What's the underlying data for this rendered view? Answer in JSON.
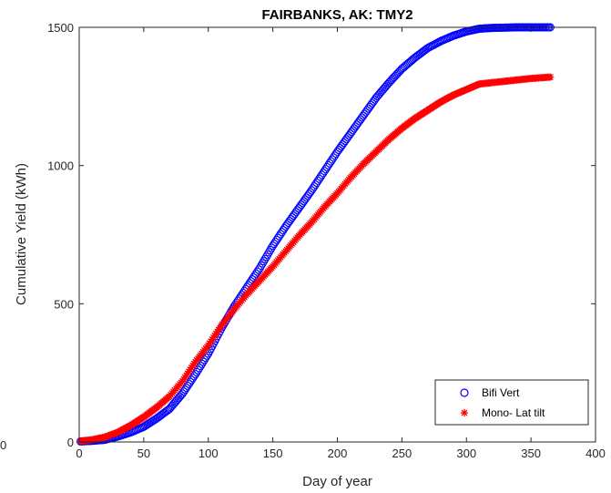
{
  "chart_data": {
    "type": "scatter",
    "title": "FAIRBANKS, AK: TMY2",
    "xlabel": "Day of year",
    "ylabel": "Cumulative Yield (kWh)",
    "xlim": [
      0,
      400
    ],
    "ylim": [
      0,
      1500
    ],
    "xticks": [
      0,
      50,
      100,
      150,
      200,
      250,
      300,
      350,
      400
    ],
    "yticks": [
      0,
      500,
      1000,
      1500
    ],
    "stray_label": "0",
    "grid": false,
    "legend_position": "bottom-right",
    "x": [
      1,
      10,
      20,
      30,
      40,
      50,
      60,
      70,
      80,
      90,
      100,
      110,
      120,
      130,
      140,
      150,
      160,
      170,
      180,
      190,
      200,
      210,
      220,
      230,
      240,
      250,
      260,
      270,
      280,
      290,
      300,
      310,
      320,
      330,
      340,
      350,
      365
    ],
    "series": [
      {
        "name": "Bifi Vert",
        "marker": "circle",
        "color": "#0000ff",
        "values": [
          2,
          4,
          8,
          20,
          35,
          55,
          85,
          120,
          175,
          245,
          320,
          410,
          490,
          560,
          630,
          710,
          780,
          845,
          910,
          980,
          1050,
          1115,
          1180,
          1245,
          1300,
          1350,
          1390,
          1425,
          1450,
          1470,
          1485,
          1495,
          1498,
          1499,
          1500,
          1500,
          1500
        ]
      },
      {
        "name": "Mono- Lat tilt",
        "marker": "asterisk",
        "color": "#ff0000",
        "values": [
          3,
          8,
          18,
          35,
          60,
          90,
          125,
          165,
          220,
          290,
          350,
          420,
          480,
          535,
          585,
          635,
          690,
          745,
          795,
          850,
          900,
          955,
          1005,
          1050,
          1095,
          1135,
          1170,
          1200,
          1230,
          1255,
          1275,
          1295,
          1300,
          1305,
          1310,
          1315,
          1320
        ]
      }
    ]
  }
}
